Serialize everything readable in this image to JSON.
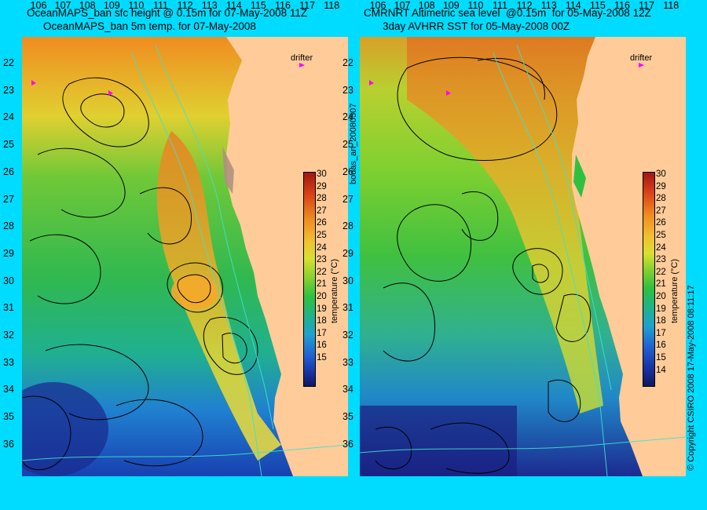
{
  "titles": {
    "left_line1": "OceanMAPS_ban sfc height @ 0.15m for 07-May-2008 11Z",
    "left_line2": "OceanMAPS_ban 5m temp. for 07-May-2008",
    "right_line1": "CMRNRT Altimetric sea level  @0.15m  for 05-May-2008 12Z",
    "right_line2": "3day AVHRR SST for 05-May-2008 00Z"
  },
  "side_labels": {
    "center": "bodas_an_20080507",
    "right": "© Copyright CSIRO 2008   17-May-2008 08:11:17"
  },
  "legend": {
    "drifter": "drifter",
    "colorbar_label": "temperature (°C)"
  },
  "axes": {
    "lat_ticks": [
      "22",
      "23",
      "24",
      "25",
      "26",
      "27",
      "28",
      "29",
      "30",
      "31",
      "32",
      "33",
      "34",
      "35",
      "36"
    ],
    "lon_ticks": [
      "106",
      "107",
      "108",
      "109",
      "110",
      "111",
      "112",
      "113",
      "114",
      "115",
      "116",
      "117",
      "118"
    ]
  },
  "colorbar_left": {
    "ticks": [
      "30",
      "29",
      "28",
      "27",
      "26",
      "25",
      "24",
      "23",
      "22",
      "21",
      "20",
      "19",
      "18",
      "17",
      "16",
      "15"
    ]
  },
  "colorbar_right": {
    "ticks": [
      "30",
      "29",
      "28",
      "27",
      "26",
      "25",
      "24",
      "23",
      "22",
      "21",
      "20",
      "19",
      "18",
      "17",
      "16",
      "15",
      "14"
    ]
  },
  "colors": {
    "background": "#00dcff",
    "land": "#ffcc99",
    "contour": "#000000",
    "coastline_iso": "#40e0d0",
    "drifter": "#ff00ff"
  }
}
